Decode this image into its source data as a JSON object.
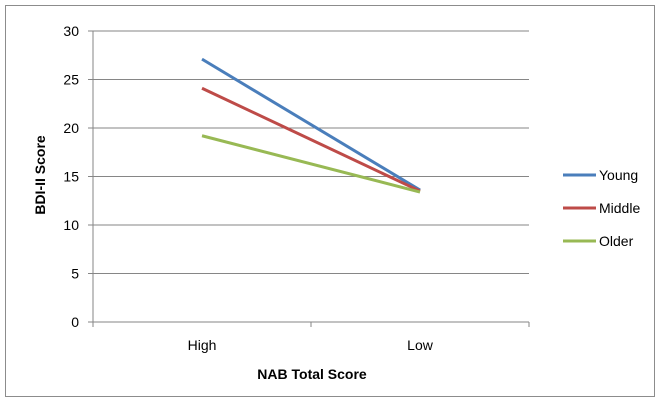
{
  "chart_data": {
    "type": "line",
    "title": "",
    "xlabel": "NAB Total Score",
    "ylabel": "BDI-II Score",
    "categories": [
      "High",
      "Low"
    ],
    "ylim": [
      0,
      30
    ],
    "yticks": [
      "0",
      "5",
      "10",
      "15",
      "20",
      "25",
      "30"
    ],
    "grid": true,
    "legend_position": "right",
    "series": [
      {
        "name": "Young",
        "values": [
          27.1,
          13.6
        ],
        "color": "#4a7ebb"
      },
      {
        "name": "Middle",
        "values": [
          24.1,
          13.5
        ],
        "color": "#be4b48"
      },
      {
        "name": "Older",
        "values": [
          19.2,
          13.4
        ],
        "color": "#98b954"
      }
    ]
  }
}
